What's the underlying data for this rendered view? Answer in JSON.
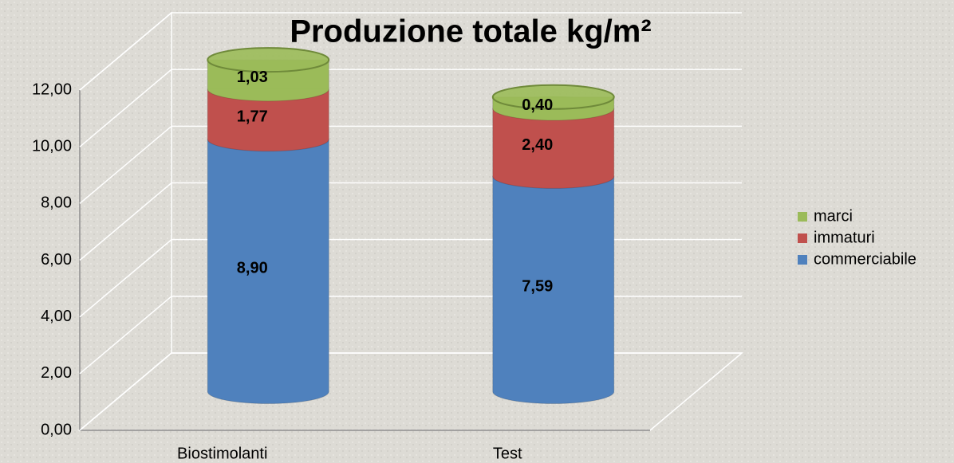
{
  "chart_data": {
    "type": "bar3d-stacked",
    "title": "Produzione totale kg/m²",
    "categories": [
      "Biostimolanti",
      "Test"
    ],
    "series": [
      {
        "name": "commerciabile",
        "color": "#4f81bd",
        "values": [
          8.9,
          7.59
        ],
        "value_labels": [
          "8,90",
          "7,59"
        ]
      },
      {
        "name": "immaturi",
        "color": "#c0504d",
        "values": [
          1.77,
          2.4
        ],
        "value_labels": [
          "1,77",
          "2,40"
        ]
      },
      {
        "name": "marci",
        "color": "#9bbb59",
        "values": [
          1.03,
          0.4
        ],
        "value_labels": [
          "1,03",
          "0,40"
        ]
      }
    ],
    "ylim": [
      0,
      12
    ],
    "yticks": [
      {
        "value": 0,
        "label": "0,00"
      },
      {
        "value": 2,
        "label": "2,00"
      },
      {
        "value": 4,
        "label": "4,00"
      },
      {
        "value": 6,
        "label": "6,00"
      },
      {
        "value": 8,
        "label": "8,00"
      },
      {
        "value": 10,
        "label": "10,00"
      },
      {
        "value": 12,
        "label": "12,00"
      }
    ],
    "grid": true,
    "legend": "right"
  }
}
